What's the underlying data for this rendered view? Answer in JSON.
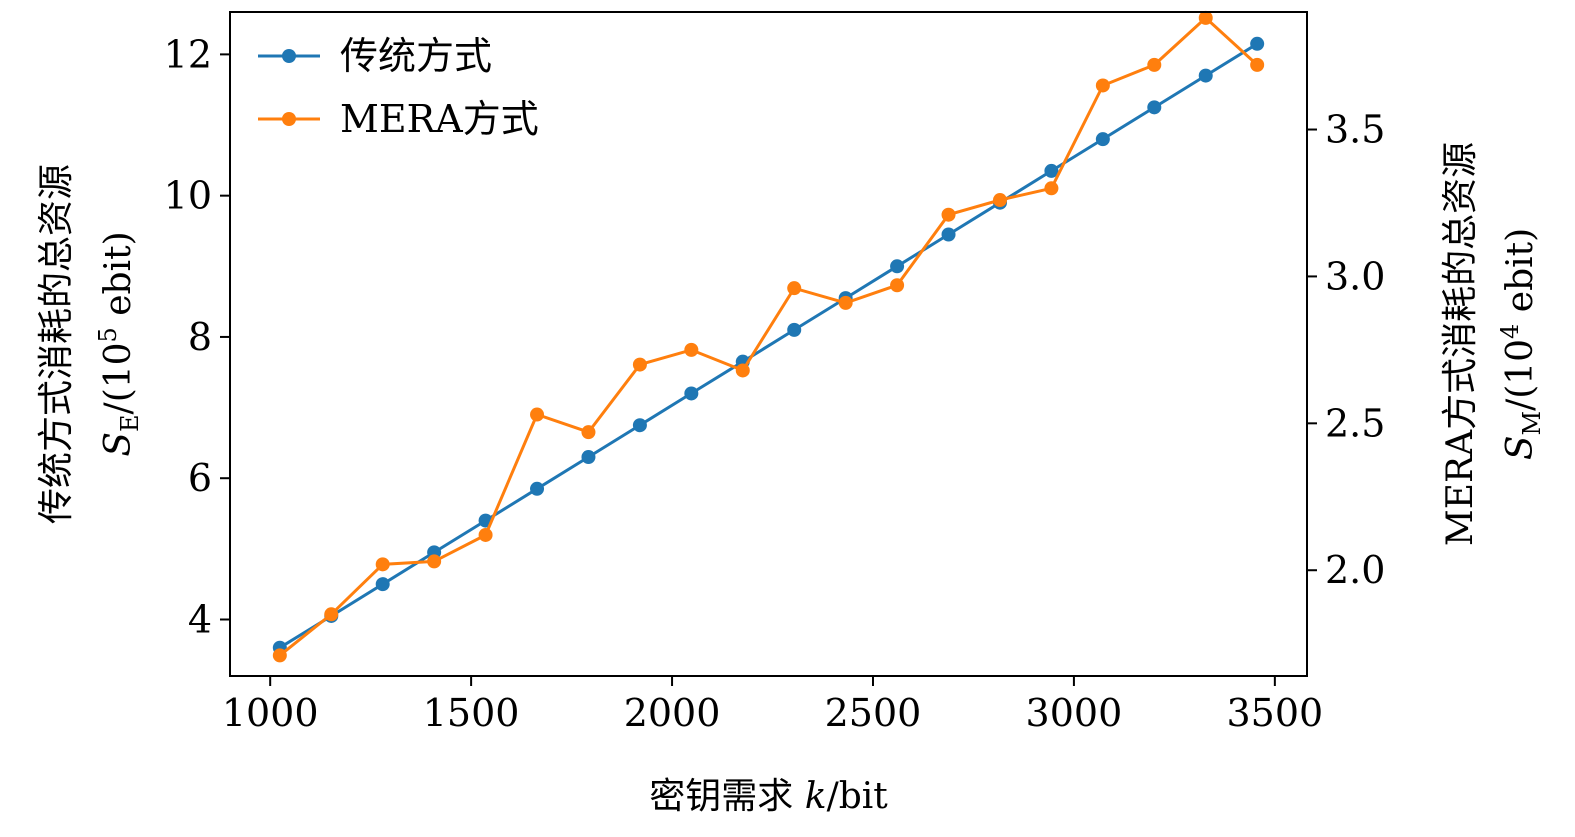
{
  "chart_data": {
    "type": "line",
    "xlabel": "密钥需求 k/bit",
    "xlabel_prefix": "密钥需求 ",
    "xlabel_var": "k",
    "xlabel_suffix": "/bit",
    "ylabel_left_line1": "传统方式消耗的总资源",
    "ylabel_left_line2": "SE/(10^5 ebit)",
    "ylabel_left_var": "S",
    "ylabel_left_sub": "E",
    "ylabel_left_tail": "/(10",
    "ylabel_left_exp": "5",
    "ylabel_left_end": " ebit)",
    "ylabel_right_line1": "MERA方式消耗的总资源",
    "ylabel_right_line2": "SM/(10^4 ebit)",
    "ylabel_right_var": "S",
    "ylabel_right_sub": "M",
    "ylabel_right_tail": "/(10",
    "ylabel_right_exp": "4",
    "ylabel_right_end": " ebit)",
    "xlim": [
      900,
      3580
    ],
    "xticks": [
      1000,
      1500,
      2000,
      2500,
      3000,
      3500
    ],
    "xtick_labels": [
      "1000",
      "1500",
      "2000",
      "2500",
      "3000",
      "3500"
    ],
    "ylim_left": [
      3.2,
      12.6
    ],
    "yticks_left": [
      4,
      6,
      8,
      10,
      12
    ],
    "ytick_labels_left": [
      "4",
      "6",
      "8",
      "10",
      "12"
    ],
    "ylim_right": [
      1.64,
      3.9
    ],
    "yticks_right": [
      2.0,
      2.5,
      3.0,
      3.5
    ],
    "ytick_labels_right": [
      "2.0",
      "2.5",
      "3.0",
      "3.5"
    ],
    "legend_position": "top-left",
    "grid": false,
    "series": [
      {
        "name": "传统方式",
        "color": "#1f77b4",
        "axis": "left",
        "x": [
          1024,
          1152,
          1280,
          1408,
          1536,
          1664,
          1792,
          1920,
          2048,
          2176,
          2304,
          2432,
          2560,
          2688,
          2816,
          2944,
          3072,
          3200,
          3328,
          3456
        ],
        "y": [
          3.6,
          4.05,
          4.5,
          4.95,
          5.4,
          5.85,
          6.3,
          6.75,
          7.2,
          7.65,
          8.1,
          8.55,
          9.0,
          9.45,
          9.9,
          10.35,
          10.8,
          11.25,
          11.7,
          12.15
        ]
      },
      {
        "name": "MERA方式",
        "color": "#ff7f0e",
        "axis": "right",
        "x": [
          1024,
          1152,
          1280,
          1408,
          1536,
          1664,
          1792,
          1920,
          2048,
          2176,
          2304,
          2432,
          2560,
          2688,
          2816,
          2944,
          3072,
          3200,
          3328,
          3456
        ],
        "y": [
          1.71,
          1.85,
          2.02,
          2.03,
          2.12,
          2.53,
          2.47,
          2.7,
          2.75,
          2.68,
          2.96,
          2.91,
          2.97,
          3.21,
          3.26,
          3.3,
          3.65,
          3.72,
          3.88,
          3.72
        ]
      }
    ]
  }
}
